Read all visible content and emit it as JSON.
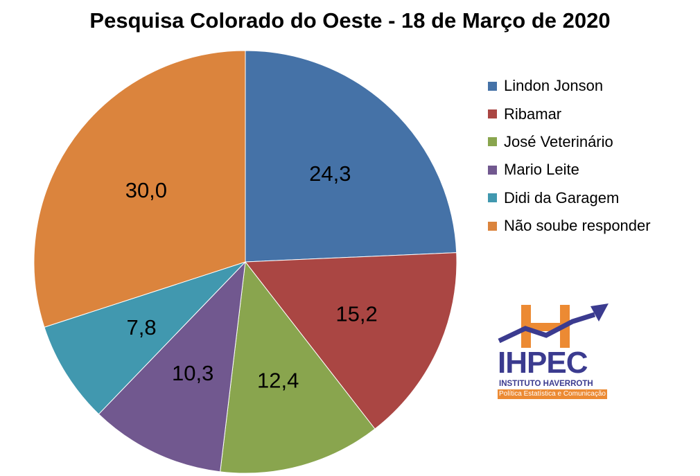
{
  "chart_data": {
    "type": "pie",
    "title": "Pesquisa Colorado do Oeste - 18 de Março de 2020",
    "categories": [
      "Lindon Jonson",
      "Ribamar",
      "José Veterinário",
      "Mario Leite",
      "Didi da Garagem",
      "Não soube responder"
    ],
    "values": [
      24.3,
      15.2,
      12.4,
      10.3,
      7.8,
      30.0
    ],
    "data_labels": [
      "24,3",
      "15,2",
      "12,4",
      "10,3",
      "7,8",
      "30,0"
    ],
    "colors": [
      "#4572a7",
      "#aa4643",
      "#89a54e",
      "#71588f",
      "#4198af",
      "#db843d"
    ],
    "legend_placement": "right",
    "start_angle": "12 o'clock, clockwise"
  },
  "logo": {
    "name": "IHPEC",
    "institute": "INSTITUTO HAVERROTH",
    "tagline": "Política Estatística e Comunicação",
    "colors": {
      "orange": "#ec8a33",
      "blue": "#3b3b8f"
    }
  }
}
